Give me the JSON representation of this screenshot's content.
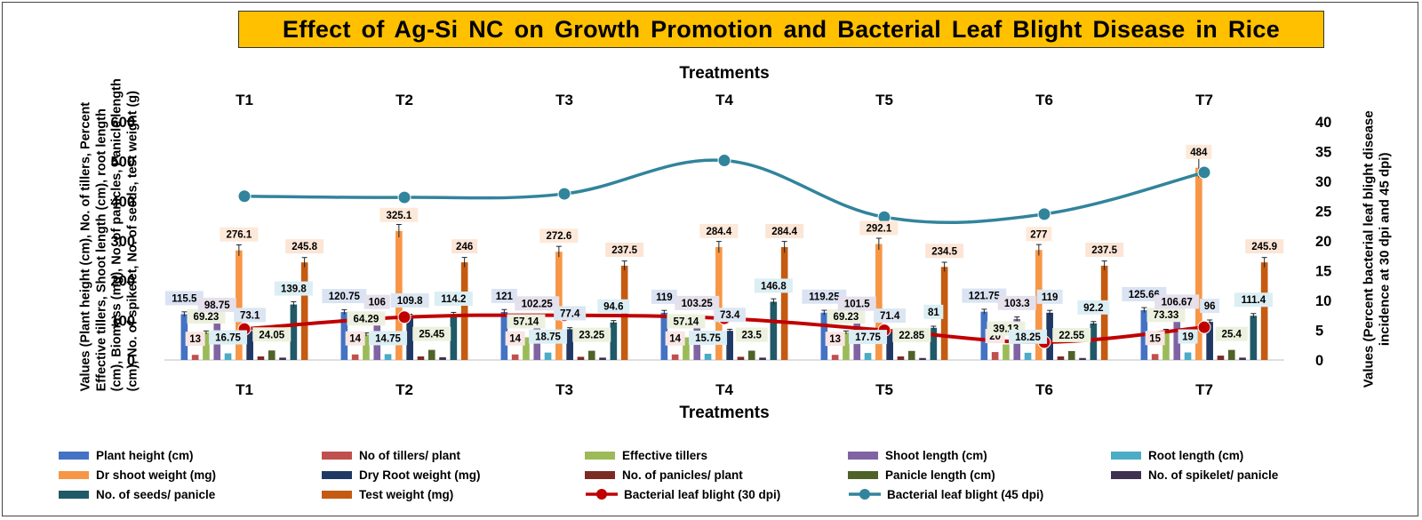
{
  "title": "Effect of Ag-Si NC on Growth Promotion and Bacterial Leaf Blight Disease in Rice",
  "chart_data": {
    "type": "bar",
    "categories": [
      "T1",
      "T2",
      "T3",
      "T4",
      "T5",
      "T6",
      "T7"
    ],
    "xlabel": "Treatments",
    "ylabel": "Values (Plant height (cm), No. of tillers, Percent Effective tillers, Shoot length (cm), root length (cm), Biomass (mg), No. of panicles, Panicle length (cm), No. of spikelet, No. of seeds, test weight (g)",
    "ylabel_lines": [
      "Values (Plant height (cm), No. of tillers, Percent",
      "Effective tillers, Shoot length (cm), root length",
      "(cm), Biomass (mg), No. of panicles, Panicle length",
      "(cm), No. of spikelet, No. of seeds, test weight (g)"
    ],
    "y2label": "Values (Percent bacterial leaf blight disease incidence at 30 dpi and 45 dpi)",
    "y2label_lines": [
      "Values (Percent bacterial leaf blight disease",
      "incidence at 30 dpi and 45 dpi)"
    ],
    "ylim": [
      0,
      600
    ],
    "yticks": [
      "0",
      "100",
      "200",
      "300",
      "400",
      "500",
      "600"
    ],
    "y2lim": [
      0,
      40
    ],
    "y2ticks": [
      "0",
      "5",
      "10",
      "15",
      "20",
      "25",
      "30",
      "35",
      "40"
    ],
    "grid": false,
    "legend_position": "bottom",
    "series": [
      {
        "name": "Plant height (cm)",
        "color": "#4472C4",
        "values": [
          115.5,
          120.75,
          121,
          119,
          119.25,
          121.75,
          125.66
        ],
        "labels": [
          "115.5",
          "120.75",
          "121",
          "119",
          "119.25",
          "121.75",
          "125.66"
        ],
        "label_bg": "#DAE3F3"
      },
      {
        "name": "No of tillers/ plant",
        "color": "#C0504D",
        "values": [
          13,
          14,
          14,
          14,
          13,
          20,
          15
        ],
        "labels": [
          "13",
          "14",
          "14",
          "14",
          "13",
          "20",
          "15"
        ],
        "label_bg": "#F8E5E4"
      },
      {
        "name": "Effective tillers",
        "color": "#9BBB59",
        "values": [
          69.23,
          64.29,
          57.14,
          57.14,
          69.23,
          39.13,
          73.33
        ],
        "labels": [
          "69.23",
          "64.29",
          "57.14",
          "57.14",
          "69.23",
          "39.13",
          "73.33"
        ],
        "label_bg": "#EBF1DE"
      },
      {
        "name": "Shoot length (cm)",
        "color": "#8064A2",
        "values": [
          98.75,
          106,
          102.25,
          103.25,
          101.5,
          103.3,
          106.67
        ],
        "labels": [
          "98.75",
          "106",
          "102.25",
          "103.25",
          "101.5",
          "103.3",
          "106.67"
        ],
        "label_bg": "#E5E0EC"
      },
      {
        "name": "Root length (cm)",
        "color": "#4BACC6",
        "values": [
          16.75,
          14.75,
          18.75,
          15.75,
          17.75,
          18.25,
          19
        ],
        "labels": [
          "16.75",
          "14.75",
          "18.75",
          "15.75",
          "17.75",
          "18.25",
          "19"
        ],
        "label_bg": "#DBEEF4"
      },
      {
        "name": "Dr shoot weight (mg)",
        "color": "#F79646",
        "values": [
          276.1,
          325.1,
          272.6,
          284.4,
          292.1,
          277,
          484
        ],
        "labels": [
          "276.1",
          "325.1",
          "272.6",
          "284.4",
          "292.1",
          "277",
          "484"
        ],
        "label_bg": "#FDE9D9"
      },
      {
        "name": "Dry Root weight (mg)",
        "color": "#1F3864",
        "values": [
          73.1,
          109.8,
          77.4,
          73.4,
          71.4,
          119,
          96
        ],
        "labels": [
          "73.1",
          "109.8",
          "77.4",
          "73.4",
          "71.4",
          "119",
          "96"
        ],
        "label_bg": "#DCE6F2"
      },
      {
        "name": "No. of panicles/ plant",
        "color": "#7B2C22",
        "values": [
          9,
          9,
          8,
          8,
          9,
          9,
          11
        ],
        "labels": [],
        "label_bg": ""
      },
      {
        "name": "Panicle length (cm)",
        "color": "#4F6228",
        "values": [
          24.05,
          25.45,
          23.25,
          23.5,
          22.85,
          22.55,
          25.4
        ],
        "labels": [
          "24.05",
          "25.45",
          "23.25",
          "23.5",
          "22.85",
          "22.55",
          "25.4"
        ],
        "label_bg": "#EBF1DE"
      },
      {
        "name": "No. of spikelet/ panicle",
        "color": "#403151",
        "values": [
          6,
          7,
          6,
          6,
          5,
          5,
          6
        ],
        "labels": [],
        "label_bg": ""
      },
      {
        "name": "No. of seeds/ panicle",
        "color": "#215967",
        "values": [
          139.8,
          114.2,
          94.6,
          146.8,
          81,
          92.2,
          111.4
        ],
        "labels": [
          "139.8",
          "114.2",
          "94.6",
          "146.8",
          "81",
          "92.2",
          "111.4"
        ],
        "label_bg": "#DBEEF4"
      },
      {
        "name": "Test weight (mg)",
        "color": "#C55A11",
        "values": [
          245.8,
          246,
          237.5,
          284.4,
          234.5,
          237.5,
          245.9
        ],
        "labels": [
          "245.8",
          "246",
          "237.5",
          "284.4",
          "234.5",
          "237.5",
          "245.9"
        ],
        "label_bg": "#FBE5D6"
      }
    ],
    "lines": [
      {
        "name": "Bacterial leaf blight (30 dpi)",
        "color": "#C00000",
        "axis": "y2",
        "values": [
          5.2,
          7.2,
          7.5,
          7,
          5,
          3,
          5.5
        ]
      },
      {
        "name": "Bacterial leaf blight (45 dpi)",
        "color": "#31849B",
        "axis": "y2",
        "values": [
          27.5,
          27.3,
          27.9,
          33.5,
          24,
          24.5,
          31.5
        ]
      }
    ]
  }
}
